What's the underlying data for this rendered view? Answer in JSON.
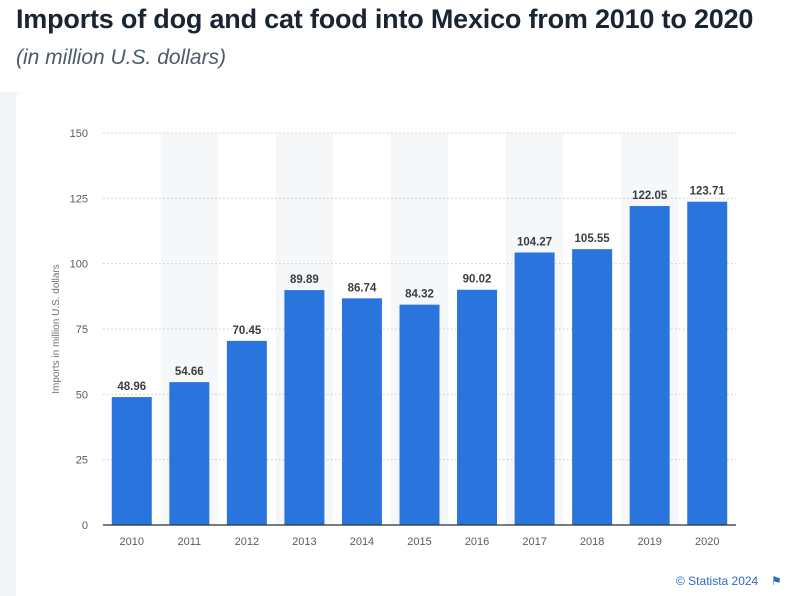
{
  "header": {
    "title": "Imports of dog and cat food into Mexico from 2010 to 2020",
    "subtitle": "(in million U.S. dollars)"
  },
  "footer": {
    "credit": "© Statista 2024",
    "flag_icon": "flag-icon"
  },
  "colors": {
    "bar": "#2a74de",
    "band": "#f6f7f8",
    "grid": "#c9ced4"
  },
  "chart_data": {
    "type": "bar",
    "title": "",
    "xlabel": "",
    "ylabel": "Imports in million U.S. dollars",
    "categories": [
      "2010",
      "2011",
      "2012",
      "2013",
      "2014",
      "2015",
      "2016",
      "2017",
      "2018",
      "2019",
      "2020"
    ],
    "values": [
      48.96,
      54.66,
      70.45,
      89.89,
      86.74,
      84.32,
      90.02,
      104.27,
      105.55,
      122.05,
      123.71
    ],
    "value_labels": [
      "48.96",
      "54.66",
      "70.45",
      "89.89",
      "86.74",
      "84.32",
      "90.02",
      "104.27",
      "105.55",
      "122.05",
      "123.71"
    ],
    "yticks": [
      0,
      25,
      50,
      75,
      100,
      125,
      150
    ],
    "ylim": [
      0,
      150
    ],
    "grid": true,
    "legend": "none"
  }
}
